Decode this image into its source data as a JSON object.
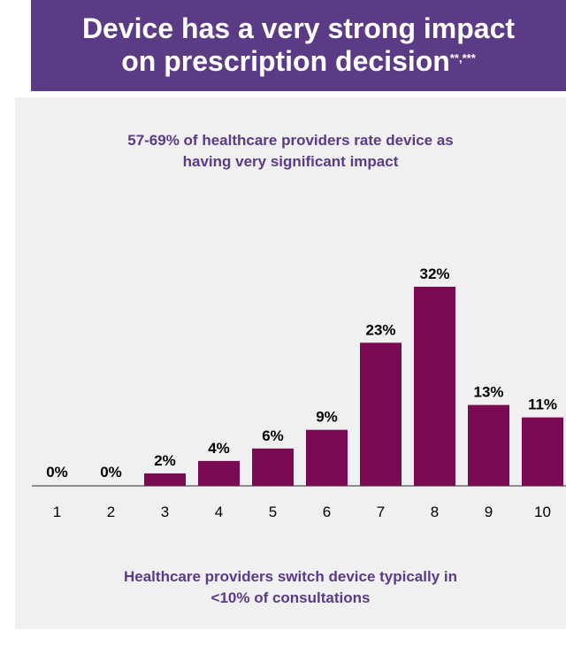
{
  "header": {
    "line1": "Device has a very strong impact",
    "line2": "on prescription decision",
    "superscript": "**,***"
  },
  "subtitle": {
    "line1": "57-69% of healthcare providers rate device as",
    "line2": "having very significant impact"
  },
  "footnote": {
    "line1": "Healthcare providers switch device typically in",
    "line2": "<10% of consultations"
  },
  "chart_data": {
    "type": "bar",
    "categories": [
      "1",
      "2",
      "3",
      "4",
      "5",
      "6",
      "7",
      "8",
      "9",
      "10"
    ],
    "values": [
      0,
      0,
      2,
      4,
      6,
      9,
      23,
      32,
      13,
      11
    ],
    "value_labels": [
      "0%",
      "0%",
      "2%",
      "4%",
      "6%",
      "9%",
      "23%",
      "32%",
      "13%",
      "11%"
    ],
    "title": "",
    "xlabel": "",
    "ylabel": "",
    "ylim": [
      0,
      32
    ],
    "grid": false,
    "legend": "none",
    "bar_color": "#7a0a52"
  },
  "colors": {
    "header_bg": "#5b3a86",
    "text_accent": "#5b3a86",
    "panel_bg": "#f0f0f0"
  }
}
